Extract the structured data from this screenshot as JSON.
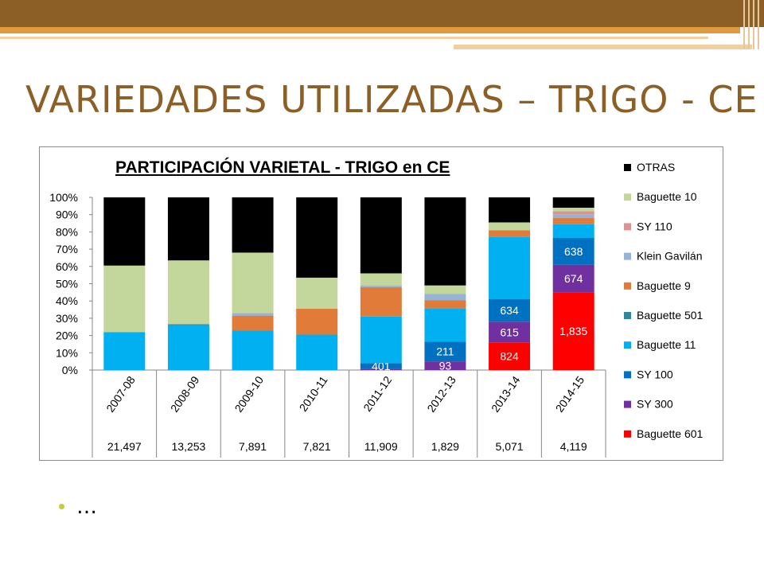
{
  "slide": {
    "title": "VARIEDADES UTILIZADAS – TRIGO - CE",
    "bullet_text": "…",
    "theme_colors": {
      "band_dark": "#8b5f25",
      "band_gold": "#e09a3f",
      "title_color": "#8b5f25",
      "bullet_color": "#c3cd37"
    }
  },
  "chart_data": {
    "type": "bar",
    "stacked": "percent",
    "title": "PARTICIPACIÓN VARIETAL - TRIGO en CE",
    "categories": [
      "2007-08",
      "2008-09",
      "2009-10",
      "2010-11",
      "2011-12",
      "2012-13",
      "2013-14",
      "2014-15"
    ],
    "table_row": [
      "21,497",
      "13,253",
      "7,891",
      "7,821",
      "11,909",
      "1,829",
      "5,071",
      "4,119"
    ],
    "y_ticks": [
      "0%",
      "10%",
      "20%",
      "30%",
      "40%",
      "50%",
      "60%",
      "70%",
      "80%",
      "90%",
      "100%"
    ],
    "ylim": [
      0,
      100
    ],
    "legend_position": "right",
    "series": [
      {
        "name": "Baguette 601",
        "color": "#ff0000",
        "values": [
          0,
          0,
          0,
          0,
          0,
          0,
          16,
          45
        ],
        "labels": [
          "",
          "",
          "",
          "",
          "",
          "",
          "824",
          "1,835"
        ]
      },
      {
        "name": "SY 300",
        "color": "#7030a0",
        "values": [
          0,
          0,
          0,
          0,
          0.5,
          5,
          12,
          16
        ],
        "labels": [
          "",
          "",
          "",
          "",
          "",
          "93",
          "615",
          "674"
        ]
      },
      {
        "name": "SY 100",
        "color": "#0070c0",
        "values": [
          0,
          0,
          0,
          0,
          3.5,
          11.5,
          13,
          15.5
        ],
        "labels": [
          "",
          "",
          "",
          "",
          "401",
          "211",
          "634",
          "638"
        ]
      },
      {
        "name": "Baguette 11",
        "color": "#00b0f0",
        "values": [
          22,
          26,
          23,
          20.5,
          27,
          19,
          36,
          8
        ],
        "labels": [
          "",
          "",
          "",
          "",
          "",
          "",
          "",
          ""
        ]
      },
      {
        "name": "Baguette 501",
        "color": "#31859c",
        "values": [
          0,
          0.5,
          0,
          0,
          0,
          0,
          0,
          0
        ],
        "labels": [
          "",
          "",
          "",
          "",
          "",
          "",
          "",
          ""
        ]
      },
      {
        "name": "Baguette 9",
        "color": "#e07b39",
        "values": [
          0,
          0,
          8.5,
          15,
          17,
          5,
          4,
          3.5
        ],
        "labels": [
          "",
          "",
          "",
          "",
          "",
          "",
          "",
          ""
        ]
      },
      {
        "name": "Klein Gavilán",
        "color": "#95b3d7",
        "values": [
          0,
          0,
          1.5,
          0,
          1,
          3.5,
          0,
          2
        ],
        "labels": [
          "",
          "",
          "",
          "",
          "",
          "",
          "",
          ""
        ]
      },
      {
        "name": "SY 110",
        "color": "#d99594",
        "values": [
          0,
          0,
          0,
          0,
          0,
          0,
          0,
          2
        ],
        "labels": [
          "",
          "",
          "",
          "",
          "",
          "",
          "",
          ""
        ]
      },
      {
        "name": "Baguette 10",
        "color": "#c3d69b",
        "values": [
          38.5,
          37,
          35,
          18,
          7,
          5,
          4.5,
          2
        ]
      },
      {
        "name": "OTRAS",
        "color": "#000000",
        "values": [
          39.5,
          36.5,
          32,
          46.5,
          44,
          51,
          14.5,
          6
        ]
      }
    ]
  }
}
